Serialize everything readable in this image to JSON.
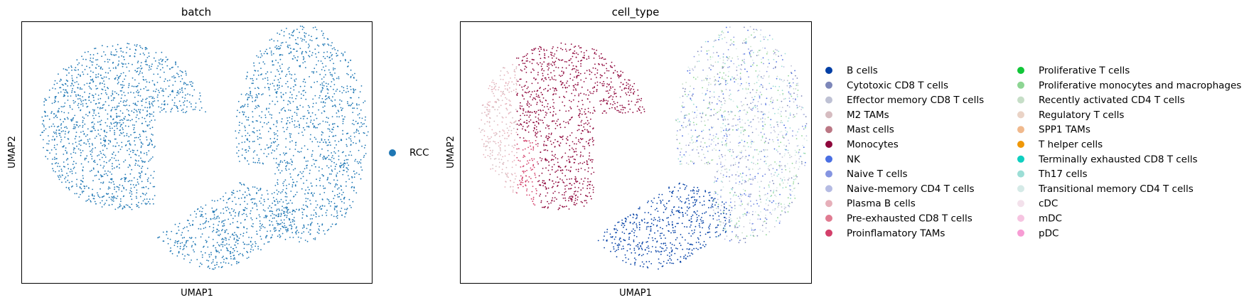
{
  "chart_data": [
    {
      "type": "scatter",
      "title": "batch",
      "xlabel": "UMAP1",
      "ylabel": "UMAP2",
      "grid": false,
      "legend_position": "right",
      "point_size": "small",
      "categories": [
        {
          "name": "RCC",
          "color": "#1f77b4"
        }
      ],
      "regions": [
        {
          "category": "RCC",
          "x": [
            -7.5,
            4.5
          ],
          "y": [
            0.0,
            11.0
          ],
          "density": 2200
        },
        {
          "category": "RCC",
          "x": [
            7.0,
            19.0
          ],
          "y": [
            1.5,
            14.0
          ],
          "density": 2000
        },
        {
          "category": "RCC",
          "x": [
            4.0,
            12.5
          ],
          "y": [
            -10.0,
            -4.0
          ],
          "density": 900
        }
      ]
    },
    {
      "type": "scatter",
      "title": "cell_type",
      "xlabel": "UMAP1",
      "ylabel": "UMAP2",
      "grid": false,
      "legend_position": "right",
      "legend_columns": 2,
      "categories": [
        {
          "name": "B cells",
          "color": "#023fa5"
        },
        {
          "name": "Cytotoxic CD8 T cells",
          "color": "#7d87b9"
        },
        {
          "name": "Effector memory CD8 T cells",
          "color": "#bec1d4"
        },
        {
          "name": "M2 TAMs",
          "color": "#d6bcc0"
        },
        {
          "name": "Mast cells",
          "color": "#bb7784"
        },
        {
          "name": "Monocytes",
          "color": "#8e063b"
        },
        {
          "name": "NK",
          "color": "#4a6fe3"
        },
        {
          "name": "Naive T cells",
          "color": "#8595e1"
        },
        {
          "name": "Naive-memory CD4 T cells",
          "color": "#b5bbe3"
        },
        {
          "name": "Plasma B cells",
          "color": "#e6afb9"
        },
        {
          "name": "Pre-exhausted CD8 T cells",
          "color": "#e07b91"
        },
        {
          "name": "Proinflamatory TAMs",
          "color": "#d33f6a"
        },
        {
          "name": "Proliferative T cells",
          "color": "#11c638"
        },
        {
          "name": "Proliferative monocytes and macrophages",
          "color": "#8dd593"
        },
        {
          "name": "Recently activated CD4 T cells",
          "color": "#c6dec7"
        },
        {
          "name": "Regulatory T cells",
          "color": "#ead3c6"
        },
        {
          "name": "SPP1 TAMs",
          "color": "#f0b98d"
        },
        {
          "name": "T helper cells",
          "color": "#ef9708"
        },
        {
          "name": "Terminally exhausted CD8 T cells",
          "color": "#0fcfc0"
        },
        {
          "name": "Th17 cells",
          "color": "#9cded6"
        },
        {
          "name": "Transitional memory CD4 T cells",
          "color": "#d5eae7"
        },
        {
          "name": "cDC",
          "color": "#f3e1eb"
        },
        {
          "name": "mDC",
          "color": "#f6c4e1"
        },
        {
          "name": "pDC",
          "color": "#f79cd4"
        }
      ]
    }
  ]
}
